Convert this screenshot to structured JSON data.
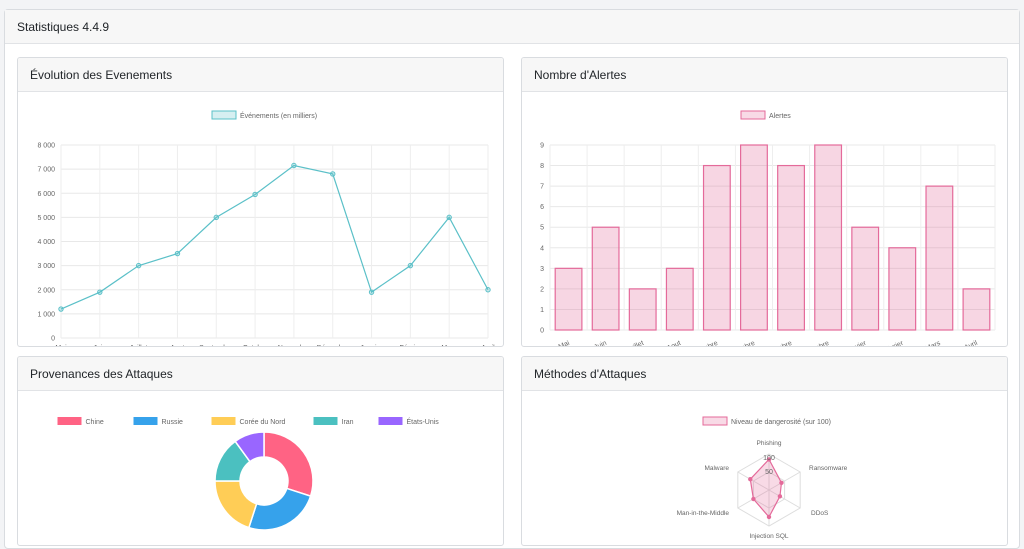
{
  "app": {
    "title": "Statistiques 4.4.9"
  },
  "cards": {
    "events": "Évolution des Evenements",
    "alerts": "Nombre d'Alertes",
    "origins": "Provenances des Attaques",
    "methods": "Méthodes d'Attaques"
  },
  "chart_data": [
    {
      "type": "line",
      "categories": [
        "Mai",
        "Juin",
        "Juillet",
        "Aout",
        "Septembre",
        "Octobre",
        "Novembre",
        "Décembre",
        "Janvier",
        "Février",
        "Mars",
        "Avril"
      ],
      "series": [
        {
          "name": "Événements (en milliers)",
          "values": [
            1200,
            1900,
            3000,
            3500,
            5000,
            5950,
            7150,
            6800,
            1900,
            3000,
            5000,
            2000
          ]
        }
      ],
      "ylim": [
        0,
        8000
      ],
      "yticks": [
        "0",
        "1 000",
        "2 000",
        "3 000",
        "4 000",
        "5 000",
        "6 000",
        "7 000",
        "8 000"
      ],
      "color": "#5bc0c8",
      "legend": "top"
    },
    {
      "type": "bar",
      "categories": [
        "Mai",
        "Juin",
        "Juillet",
        "Aout",
        "Septembre",
        "Octobre",
        "Novembre",
        "Décembre",
        "Janvier",
        "Février",
        "Mars",
        "Avril"
      ],
      "series": [
        {
          "name": "Alertes",
          "values": [
            3,
            5,
            2,
            3,
            8,
            9,
            8,
            9,
            5,
            4,
            7,
            2
          ]
        }
      ],
      "ylim": [
        0,
        9
      ],
      "yticks": [
        "0",
        "1",
        "2",
        "3",
        "4",
        "5",
        "6",
        "7",
        "8",
        "9"
      ],
      "color": "#e46a9a",
      "legend": "top"
    },
    {
      "type": "pie",
      "categories": [
        "Chine",
        "Russie",
        "Corée du Nord",
        "Iran",
        "États-Unis"
      ],
      "values": [
        30,
        25,
        20,
        15,
        10
      ],
      "colors": [
        "#ff6384",
        "#36a2eb",
        "#ffcd56",
        "#4bc0c0",
        "#9966ff"
      ],
      "legend": "top"
    },
    {
      "type": "radar",
      "categories": [
        "Phishing",
        "Ransomware",
        "DDoS",
        "Injection SQL",
        "Man-in-the-Middle",
        "Malware"
      ],
      "series": [
        {
          "name": "Niveau de dangerosité (sur 100)",
          "values": [
            85,
            40,
            35,
            75,
            50,
            60
          ]
        }
      ],
      "rticks": [
        "50",
        "100"
      ],
      "rmax": 100,
      "color": "#e46a9a",
      "legend": "top"
    }
  ]
}
